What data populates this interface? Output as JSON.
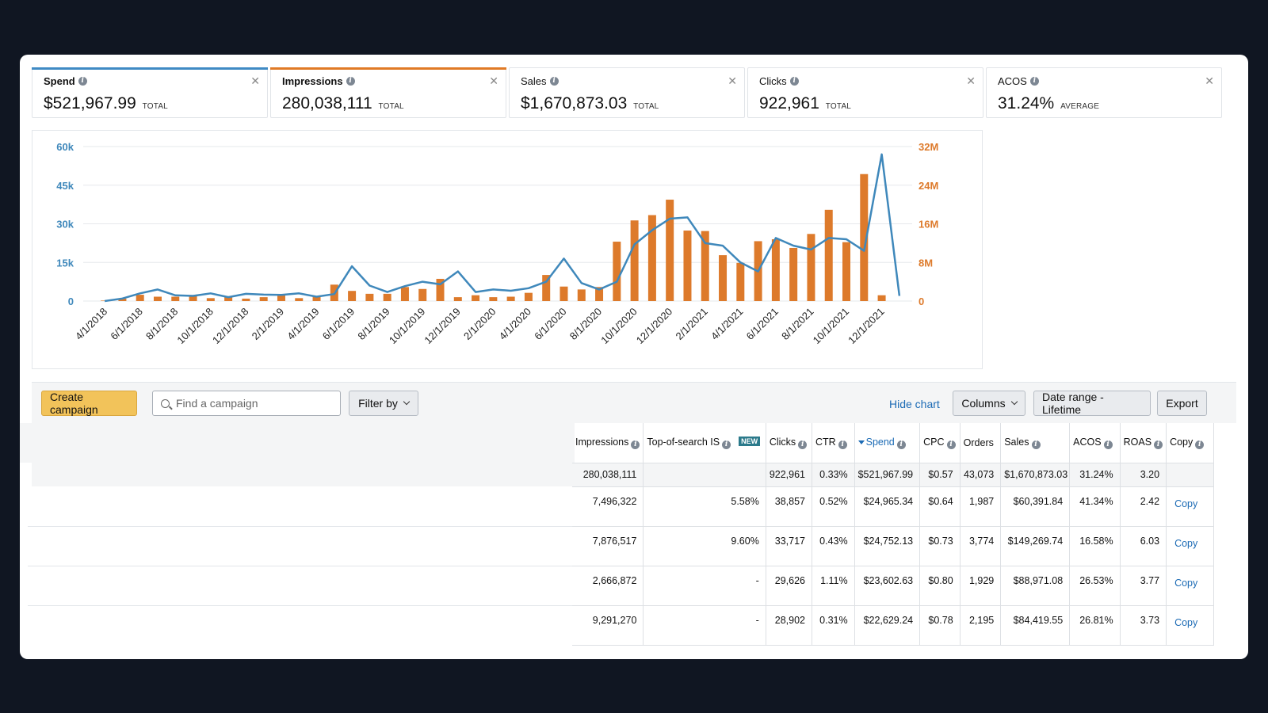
{
  "cards": [
    {
      "label": "Spend",
      "value": "$521,967.99",
      "unit": "TOTAL",
      "accent": "#3f8ac4"
    },
    {
      "label": "Impressions",
      "value": "280,038,111",
      "unit": "TOTAL",
      "accent": "#e07a25"
    },
    {
      "label": "Sales",
      "value": "$1,670,873.03",
      "unit": "TOTAL",
      "accent": ""
    },
    {
      "label": "Clicks",
      "value": "922,961",
      "unit": "TOTAL",
      "accent": ""
    },
    {
      "label": "ACOS",
      "value": "31.24%",
      "unit": "AVERAGE",
      "accent": ""
    }
  ],
  "chart_data": {
    "type": "bar+line",
    "x": [
      "4/1/2018",
      "5/1/2018",
      "6/1/2018",
      "7/1/2018",
      "8/1/2018",
      "9/1/2018",
      "10/1/2018",
      "11/1/2018",
      "12/1/2018",
      "1/1/2019",
      "2/1/2019",
      "3/1/2019",
      "4/1/2019",
      "5/1/2019",
      "6/1/2019",
      "7/1/2019",
      "8/1/2019",
      "9/1/2019",
      "10/1/2019",
      "11/1/2019",
      "12/1/2019",
      "1/1/2020",
      "2/1/2020",
      "3/1/2020",
      "4/1/2020",
      "5/1/2020",
      "6/1/2020",
      "7/1/2020",
      "8/1/2020",
      "9/1/2020",
      "10/1/2020",
      "11/1/2020",
      "12/1/2020",
      "1/1/2021",
      "2/1/2021",
      "3/1/2021",
      "4/1/2021",
      "5/1/2021",
      "6/1/2021",
      "7/1/2021",
      "8/1/2021",
      "9/1/2021",
      "10/1/2021",
      "11/1/2021",
      "12/1/2021",
      "1/1/2022"
    ],
    "x_tick_labels": [
      "4/1/2018",
      "6/1/2018",
      "8/1/2018",
      "10/1/2018",
      "12/1/2018",
      "2/1/2019",
      "4/1/2019",
      "6/1/2019",
      "8/1/2019",
      "10/1/2019",
      "12/1/2019",
      "2/1/2020",
      "4/1/2020",
      "6/1/2020",
      "8/1/2020",
      "10/1/2020",
      "12/1/2020",
      "2/1/2021",
      "4/1/2021",
      "6/1/2021",
      "8/1/2021",
      "10/1/2021",
      "12/1/2021"
    ],
    "series": [
      {
        "name": "Impressions",
        "type": "bar",
        "axis": "right",
        "color": "#dd7a2b",
        "values": [
          0.1,
          0.5,
          1.3,
          0.9,
          0.9,
          1.2,
          0.6,
          1.0,
          0.5,
          0.8,
          1.4,
          0.6,
          0.9,
          3.4,
          2.1,
          1.5,
          1.5,
          2.9,
          2.5,
          4.6,
          0.8,
          1.2,
          0.8,
          0.9,
          1.7,
          5.4,
          3.0,
          2.4,
          2.9,
          12.3,
          16.7,
          17.8,
          21.0,
          14.6,
          14.5,
          9.5,
          7.9,
          12.4,
          12.8,
          11.0,
          13.9,
          18.9,
          12.2,
          26.3,
          1.2,
          0
        ]
      },
      {
        "name": "Spend",
        "type": "line",
        "axis": "left",
        "color": "#3f88bb",
        "values": [
          0,
          1000,
          3000,
          4500,
          2200,
          2000,
          3000,
          1500,
          2800,
          2500,
          2400,
          3000,
          1700,
          2700,
          13500,
          6000,
          3500,
          5800,
          7500,
          6500,
          11500,
          3500,
          4500,
          4000,
          5000,
          7500,
          16500,
          7000,
          4500,
          7500,
          22000,
          27500,
          32000,
          32500,
          22500,
          21500,
          15000,
          11500,
          24500,
          21500,
          20000,
          24500,
          24000,
          19500,
          57000,
          2000
        ]
      }
    ],
    "y_left": {
      "ticks": [
        "0",
        "15k",
        "30k",
        "45k",
        "60k"
      ],
      "range": [
        0,
        60000
      ],
      "color": "#3f88bb"
    },
    "y_right": {
      "ticks": [
        "0",
        "8M",
        "16M",
        "24M",
        "32M"
      ],
      "range": [
        0,
        32000000
      ],
      "color": "#dd7a2b"
    },
    "grid": true
  },
  "toolbar": {
    "create_label": "Create campaign",
    "search_placeholder": "Find a campaign",
    "filter_label": "Filter by",
    "hide_chart": "Hide chart",
    "columns_label": "Columns",
    "date_range_label": "Date range - Lifetime",
    "export_label": "Export"
  },
  "table": {
    "headers": [
      "Impressions",
      "Top-of-search IS",
      "Clicks",
      "CTR",
      "Spend",
      "CPC",
      "Orders",
      "Sales",
      "ACOS",
      "ROAS",
      "Copy"
    ],
    "new_badge": "NEW",
    "total": [
      "280,038,111",
      "",
      "922,961",
      "0.33%",
      "$521,967.99",
      "$0.57",
      "43,073",
      "$1,670,873.03",
      "31.24%",
      "3.20",
      ""
    ],
    "rows": [
      [
        "7,496,322",
        "5.58%",
        "38,857",
        "0.52%",
        "$24,965.34",
        "$0.64",
        "1,987",
        "$60,391.84",
        "41.34%",
        "2.42",
        "Copy"
      ],
      [
        "7,876,517",
        "9.60%",
        "33,717",
        "0.43%",
        "$24,752.13",
        "$0.73",
        "3,774",
        "$149,269.74",
        "16.58%",
        "6.03",
        "Copy"
      ],
      [
        "2,666,872",
        "-",
        "29,626",
        "1.11%",
        "$23,602.63",
        "$0.80",
        "1,929",
        "$88,971.08",
        "26.53%",
        "3.77",
        "Copy"
      ],
      [
        "9,291,270",
        "-",
        "28,902",
        "0.31%",
        "$22,629.24",
        "$0.78",
        "2,195",
        "$84,419.55",
        "26.81%",
        "3.73",
        "Copy"
      ]
    ]
  }
}
